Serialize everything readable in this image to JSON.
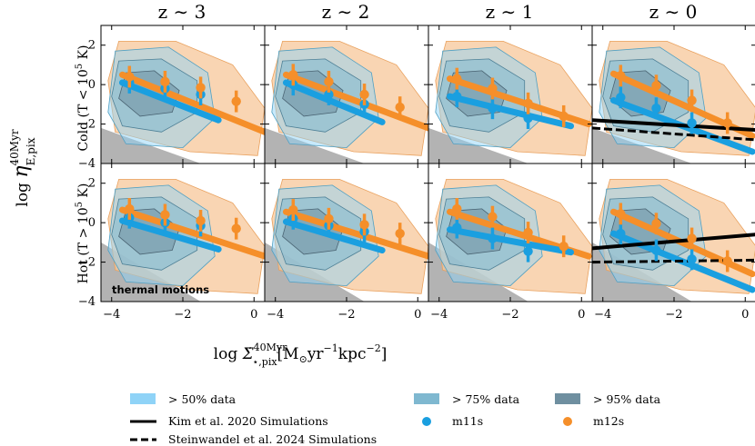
{
  "chart_data": {
    "type": "scatter",
    "columns": [
      {
        "title_base": "z",
        "title_approx": "∼",
        "title_value": "3"
      },
      {
        "title_base": "z",
        "title_approx": "∼",
        "title_value": "2"
      },
      {
        "title_base": "z",
        "title_approx": "∼",
        "title_value": "1"
      },
      {
        "title_base": "z",
        "title_approx": "∼",
        "title_value": "0"
      }
    ],
    "rows": [
      {
        "phase": "Cold",
        "cond": "T < 10",
        "cond_exp": "5",
        "cond_unit": "K"
      },
      {
        "phase": "Hot",
        "cond": "T > 10",
        "cond_exp": "5",
        "cond_unit": "K"
      }
    ],
    "ylabel": {
      "log": "log",
      "eta": "η",
      "sup": "40Myr",
      "sub": "E,pix"
    },
    "xlabel": {
      "log": "log",
      "sigma": "Σ̇",
      "sup": "40Myr",
      "sub": "⋆,pix",
      "unit_open": "[M",
      "unit_sun": "⊙",
      "unit_yr": "yr",
      "unit_yr_exp": "−1",
      "unit_kpc": "kpc",
      "unit_kpc_exp": "−2",
      "unit_close": "]"
    },
    "xlim": [
      -4.3,
      0.3
    ],
    "ylim": [
      -4,
      3
    ],
    "xticks": [
      -4,
      -2,
      0
    ],
    "xtick_labels": [
      "−4",
      "−2",
      "0"
    ],
    "yticks": [
      -4,
      -2,
      0,
      2
    ],
    "ytick_labels": [
      "−4",
      "−2",
      "0",
      "2"
    ],
    "thermal_note": "thermal motions",
    "colors": {
      "m11s": "#1a9fe0",
      "m12s": "#f58f2a",
      "band_light": "#8fd3f7",
      "band_mid": "#7fb8d0",
      "band_dark": "#6f8fa0",
      "orange_band": "#f7c79a",
      "thermal": "#b3b3b3"
    },
    "series": [
      {
        "name": "m11s",
        "x": [
          -3.5,
          -2.5,
          -1.5
        ],
        "y": [
          [
            0.1,
            -0.2,
            -0.5
          ],
          [
            0.0,
            -0.5,
            -1.0
          ],
          [
            -0.6,
            -1.2,
            -1.7
          ],
          [
            -0.65,
            -1.2,
            -1.95
          ]
        ],
        "y_hot": [
          [
            0.25,
            0.0,
            -0.15
          ],
          [
            0.2,
            -0.15,
            -0.45
          ],
          [
            -0.25,
            -0.8,
            -1.45
          ],
          [
            -0.55,
            -1.4,
            -1.85
          ]
        ]
      },
      {
        "name": "m12s",
        "x": [
          -3.5,
          -2.5,
          -1.5,
          -0.5
        ],
        "y": [
          [
            0.4,
            0.15,
            -0.15,
            -0.85
          ],
          [
            0.5,
            0.15,
            -0.5,
            -1.15
          ],
          [
            0.3,
            -0.2,
            -0.95,
            -1.6
          ],
          [
            0.45,
            -0.05,
            -0.8,
            -1.95
          ]
        ],
        "y_hot": [
          [
            0.7,
            0.4,
            0.1,
            -0.3
          ],
          [
            0.65,
            0.2,
            -0.1,
            -0.55
          ],
          [
            0.7,
            0.3,
            -0.5,
            -1.2
          ],
          [
            0.45,
            -0.05,
            -0.8,
            -1.95
          ]
        ]
      }
    ],
    "fits": {
      "m11s": [
        [
          -3.7,
          0.1,
          -1.0,
          -1.8
        ],
        [
          -3.7,
          0.1,
          -1.0,
          -1.9
        ],
        [
          -3.7,
          -0.6,
          -0.3,
          -2.1
        ],
        [
          -3.7,
          -0.8,
          0.2,
          -3.4
        ]
      ],
      "m12s": [
        [
          -3.7,
          0.5,
          0.3,
          -2.4
        ],
        [
          -3.7,
          0.5,
          0.3,
          -2.2
        ],
        [
          -3.7,
          0.3,
          0.2,
          -2.0
        ],
        [
          -3.7,
          0.55,
          0.2,
          -2.6
        ]
      ],
      "m11s_hot": [
        [
          -3.7,
          0.1,
          -1.0,
          -1.35
        ],
        [
          -3.7,
          0.05,
          -1.0,
          -1.4
        ],
        [
          -3.7,
          -0.35,
          -0.3,
          -1.5
        ],
        [
          -3.7,
          -0.55,
          0.2,
          -3.4
        ]
      ],
      "m12s_hot": [
        [
          -3.7,
          0.65,
          0.3,
          -1.7
        ],
        [
          -3.7,
          0.55,
          0.3,
          -1.7
        ],
        [
          -3.7,
          0.55,
          0.2,
          -1.7
        ],
        [
          -3.7,
          0.55,
          0.2,
          -2.6
        ]
      ]
    },
    "kim_2020": {
      "cold": [
        -4.3,
        -1.8,
        0.3,
        -2.3
      ],
      "hot": [
        -4.3,
        -1.3,
        0.3,
        -0.6
      ]
    },
    "steinwandel_2024": {
      "cold": [
        -4.3,
        -2.2,
        0.3,
        -2.8
      ],
      "hot": [
        -4.3,
        -2.0,
        0.3,
        -1.9
      ]
    },
    "legend": [
      {
        "key": "band50",
        "label": "> 50% data"
      },
      {
        "key": "band75",
        "label": "> 75% data"
      },
      {
        "key": "band95",
        "label": "> 95% data"
      },
      {
        "key": "kim",
        "label": "Kim et al. 2020 Simulations"
      },
      {
        "key": "m11s",
        "label": "m11s"
      },
      {
        "key": "m12s",
        "label": "m12s"
      },
      {
        "key": "stein",
        "label": "Steinwandel et al. 2024 Simulations"
      }
    ]
  }
}
